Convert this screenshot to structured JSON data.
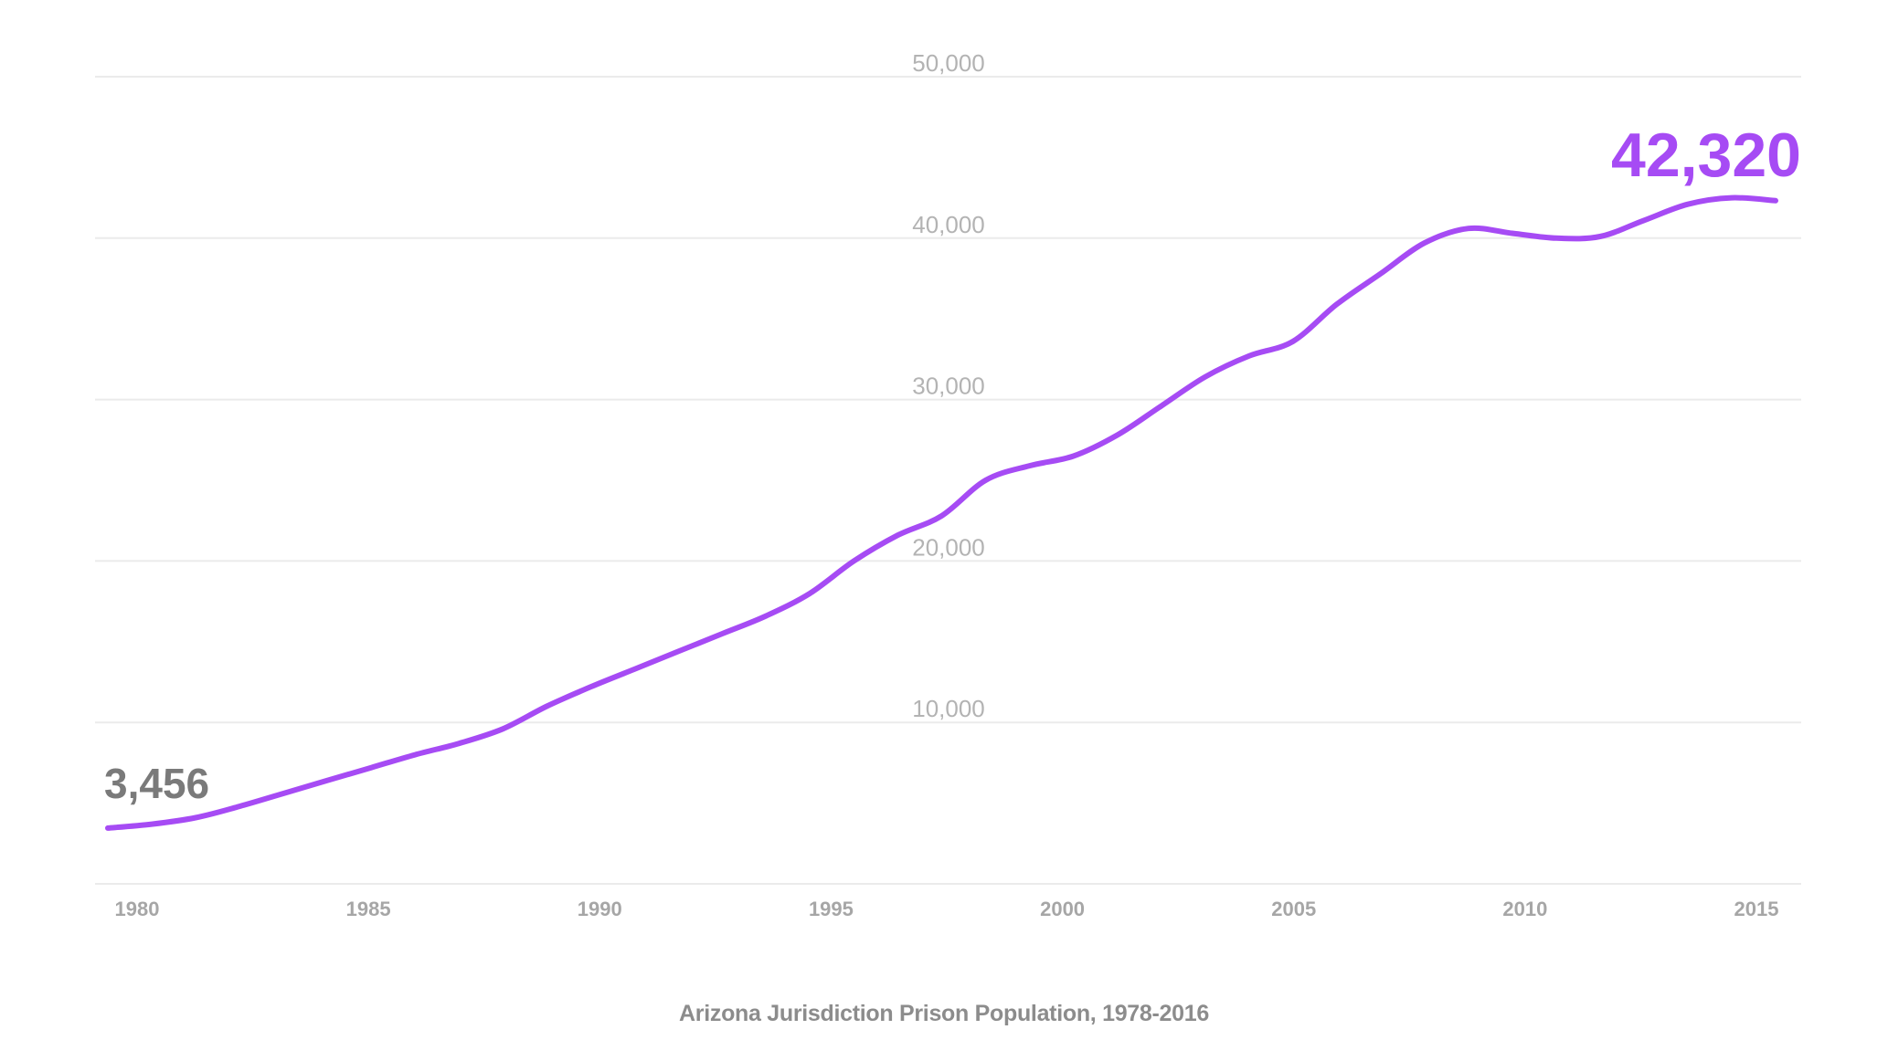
{
  "chart_data": {
    "type": "line",
    "title": "Arizona Jurisdiction Prison Population, 1978-2016",
    "xlabel": "",
    "ylabel": "",
    "ylim": [
      0,
      50000
    ],
    "xlim": [
      1978,
      2016
    ],
    "grid": true,
    "legend": null,
    "y_ticks": [
      {
        "value": 10000,
        "label": "10,000"
      },
      {
        "value": 20000,
        "label": "20,000"
      },
      {
        "value": 30000,
        "label": "30,000"
      },
      {
        "value": 40000,
        "label": "40,000"
      },
      {
        "value": 50000,
        "label": "50,000"
      }
    ],
    "x_ticks": [
      {
        "value": 1980,
        "label": "1980"
      },
      {
        "value": 1985,
        "label": "1985"
      },
      {
        "value": 1990,
        "label": "1990"
      },
      {
        "value": 1995,
        "label": "1995"
      },
      {
        "value": 2000,
        "label": "2000"
      },
      {
        "value": 2005,
        "label": "2005"
      },
      {
        "value": 2010,
        "label": "2010"
      },
      {
        "value": 2015,
        "label": "2015"
      }
    ],
    "x": [
      1978,
      1979,
      1980,
      1981,
      1982,
      1983,
      1984,
      1985,
      1986,
      1987,
      1988,
      1989,
      1990,
      1991,
      1992,
      1993,
      1994,
      1995,
      1996,
      1997,
      1998,
      1999,
      2000,
      2001,
      2002,
      2003,
      2004,
      2005,
      2006,
      2007,
      2008,
      2009,
      2010,
      2011,
      2012,
      2013,
      2014,
      2015,
      2016
    ],
    "series": [
      {
        "name": "Arizona Jurisdiction Prison Population",
        "color": "#a64bf4",
        "values": [
          3456,
          3700,
          4100,
          4800,
          5600,
          6400,
          7200,
          8000,
          8700,
          9600,
          11000,
          12200,
          13300,
          14400,
          15500,
          16600,
          18000,
          20000,
          21600,
          22800,
          25000,
          25900,
          26500,
          27800,
          29600,
          31400,
          32700,
          33600,
          35900,
          37800,
          39700,
          40600,
          40300,
          40000,
          40100,
          41100,
          42100,
          42500,
          42320
        ]
      }
    ],
    "annotations": [
      {
        "text": "3,456",
        "position": "start",
        "color": "#7a7a7a"
      },
      {
        "text": "42,320",
        "position": "end",
        "color": "#a64bf4"
      }
    ]
  },
  "caption": "Arizona Jurisdiction Prison Population, 1978-2016"
}
